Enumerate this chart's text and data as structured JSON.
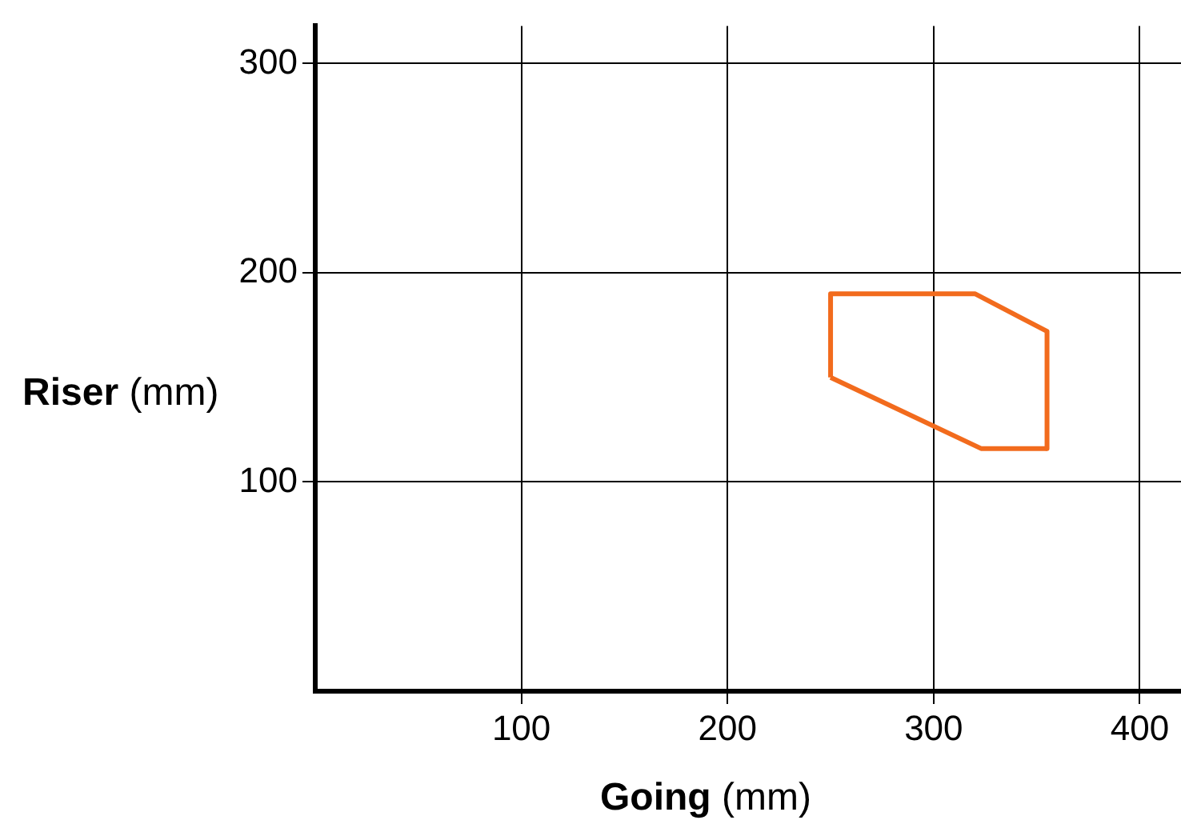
{
  "chart_data": {
    "type": "line",
    "xlabel": "Going (mm)",
    "ylabel": "Riser (mm)",
    "series": [
      {
        "color": "#f26b1d",
        "x": [
          250,
          250,
          320,
          355,
          355
        ],
        "values": [
          150,
          190,
          190,
          172,
          116
        ]
      },
      {
        "color": "#f26b1d",
        "x": [
          250,
          323,
          355
        ],
        "values": [
          150,
          116,
          116
        ]
      }
    ],
    "xlim": [
      0,
      420
    ],
    "ylim": [
      0,
      318
    ],
    "xticks": [
      100,
      200,
      300,
      400
    ],
    "yticks": [
      100,
      200,
      300
    ],
    "grid": true,
    "legend": false,
    "marker": "none",
    "line_style": "solid"
  }
}
